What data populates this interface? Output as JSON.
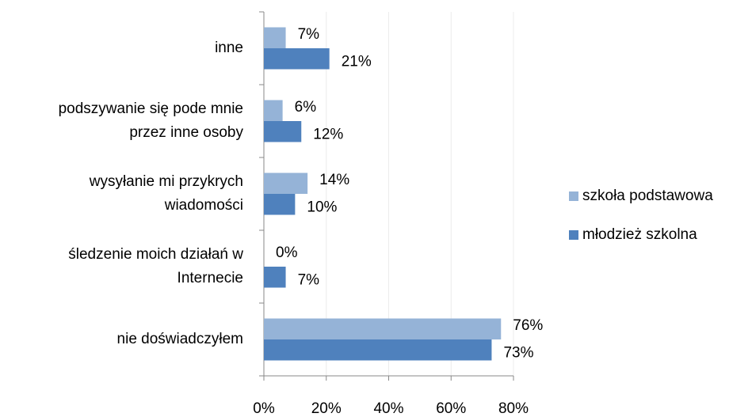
{
  "chart_data": {
    "type": "barh",
    "categories": [
      [
        "inne"
      ],
      [
        "podszywanie się pode mnie",
        "przez inne osoby"
      ],
      [
        "wysyłanie mi przykrych",
        "wiadomości"
      ],
      [
        "śledzenie moich działań w",
        "Internecie"
      ],
      [
        "nie doświadczyłem"
      ]
    ],
    "series": [
      {
        "name": "szkoła podstawowa",
        "color": "#95b3d7",
        "values": [
          7,
          6,
          14,
          0,
          76
        ],
        "value_labels": [
          "7%",
          "6%",
          "14%",
          "0%",
          "76%"
        ]
      },
      {
        "name": "młodzież szkolna",
        "color": "#4f81bd",
        "values": [
          21,
          12,
          10,
          7,
          73
        ],
        "value_labels": [
          "21%",
          "12%",
          "10%",
          "7%",
          "73%"
        ]
      }
    ],
    "xlim": [
      0,
      80
    ],
    "xticks": [
      {
        "value": 0,
        "label": "0%"
      },
      {
        "value": 20,
        "label": "20%"
      },
      {
        "value": 40,
        "label": "40%"
      },
      {
        "value": 60,
        "label": "60%"
      },
      {
        "value": 80,
        "label": "80%"
      }
    ],
    "grid": true,
    "legend": "right"
  }
}
